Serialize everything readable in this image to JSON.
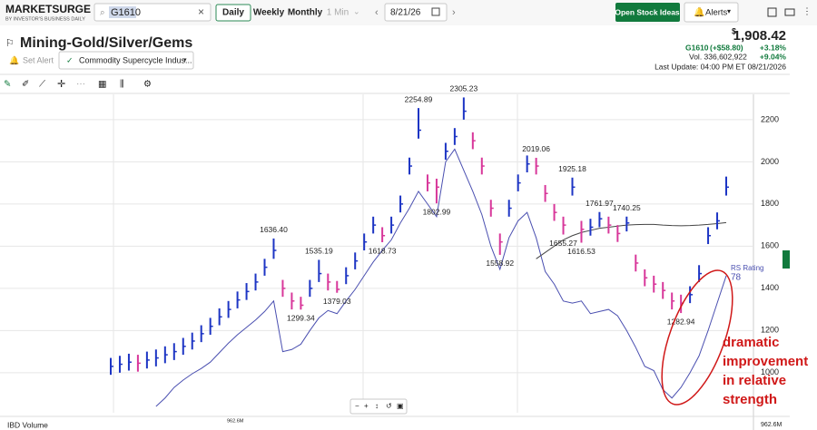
{
  "app": {
    "logo": "MARKETSURGE",
    "logo_sub": "BY INVESTOR'S BUSINESS DAILY",
    "search": "G1610",
    "periods": [
      "Daily",
      "Weekly",
      "Monthly",
      "1 Min"
    ],
    "date": "8/21/26",
    "open_ideas": "Open Stock Ideas",
    "alerts": "Alerts",
    "title": "Mining-Gold/Silver/Gems",
    "set_alert": "Set Alert",
    "list": "Commodity Supercycle Indus...",
    "quote": {
      "currency": "$",
      "price": "1,908.42",
      "symbol": "G1610",
      "change": "(+$58.80)",
      "change_pct": "+3.18%",
      "volume": "Vol. 336,602,922",
      "volume_pct": "+9.04%",
      "last_update": "Last Update: 04:00 PM ET 08/21/2026"
    },
    "volume_label": "IBD Volume",
    "volume_ticks": [
      "962.6M",
      "962.6M"
    ]
  },
  "chart_data": {
    "type": "ohlc",
    "ylim": [
      810,
      2320
    ],
    "yticks": [
      1000,
      1200,
      1400,
      1600,
      1800,
      2000,
      2200
    ],
    "up_color": "#1d35c4",
    "down_color": "#d8379a",
    "closes": [
      1030,
      1040,
      1050,
      1045,
      1060,
      1070,
      1085,
      1100,
      1125,
      1150,
      1185,
      1220,
      1265,
      1300,
      1345,
      1385,
      1430,
      1500,
      1580,
      1400,
      1340,
      1320,
      1400,
      1470,
      1430,
      1395,
      1460,
      1530,
      1620,
      1700,
      1650,
      1700,
      1800,
      1980,
      2150,
      1900,
      1880,
      2050,
      2120,
      2240,
      2100,
      1980,
      1780,
      1620,
      1780,
      1900,
      1990,
      1980,
      1850,
      1760,
      1700,
      1880,
      1680,
      1690,
      1730,
      1700,
      1660,
      1710,
      1520,
      1450,
      1420,
      1390,
      1340,
      1330,
      1370,
      1470,
      1650,
      1720,
      1880
    ],
    "highs": [
      1070,
      1080,
      1090,
      1085,
      1100,
      1110,
      1125,
      1140,
      1165,
      1190,
      1225,
      1260,
      1305,
      1340,
      1385,
      1425,
      1470,
      1540,
      1636.4,
      1440,
      1380,
      1360,
      1440,
      1535.19,
      1470,
      1435,
      1500,
      1570,
      1660,
      1740,
      1690,
      1740,
      1840,
      2020,
      2254.89,
      1940,
      1920,
      2090,
      2160,
      2305.23,
      2140,
      2020,
      1820,
      1660,
      1820,
      1940,
      2030,
      2019.06,
      1890,
      1800,
      1740,
      1925.18,
      1720,
      1730,
      1761.97,
      1740,
      1700,
      1740.25,
      1560,
      1490,
      1460,
      1430,
      1380,
      1370,
      1410,
      1510,
      1690,
      1760,
      1930
    ],
    "lows": [
      990,
      1000,
      1010,
      1005,
      1020,
      1030,
      1045,
      1060,
      1085,
      1110,
      1145,
      1180,
      1225,
      1260,
      1305,
      1345,
      1390,
      1460,
      1540,
      1360,
      1300,
      1299.34,
      1360,
      1430,
      1390,
      1379.03,
      1420,
      1490,
      1580,
      1660,
      1618.73,
      1660,
      1760,
      1940,
      2110,
      1860,
      1802.99,
      2010,
      2080,
      2200,
      2060,
      1940,
      1740,
      1558.92,
      1740,
      1860,
      1950,
      1940,
      1810,
      1720,
      1655.27,
      1840,
      1616.53,
      1650,
      1690,
      1660,
      1620,
      1670,
      1480,
      1410,
      1380,
      1350,
      1300,
      1282.94,
      1330,
      1430,
      1610,
      1680,
      1840
    ],
    "price_labels": [
      {
        "value": 1636.4,
        "label": "1636.40"
      },
      {
        "value": 1299.34,
        "label": "1299.34"
      },
      {
        "value": 1535.19,
        "label": "1535.19"
      },
      {
        "value": 1379.03,
        "label": "1379.03"
      },
      {
        "value": 1618.73,
        "label": "1618.73"
      },
      {
        "value": 2254.89,
        "label": "2254.89"
      },
      {
        "value": 1802.99,
        "label": "1802.99"
      },
      {
        "value": 2305.23,
        "label": "2305.23"
      },
      {
        "value": 1558.92,
        "label": "1558.92"
      },
      {
        "value": 2019.06,
        "label": "2019.06"
      },
      {
        "value": 1655.27,
        "label": "1655.27"
      },
      {
        "value": 1925.18,
        "label": "1925.18"
      },
      {
        "value": 1616.53,
        "label": "1616.53"
      },
      {
        "value": 1761.97,
        "label": "1761.97"
      },
      {
        "value": 1740.25,
        "label": "1740.25"
      },
      {
        "value": 1282.94,
        "label": "1282.94"
      }
    ],
    "rs_line": {
      "name": "RS Rating",
      "rating": "78",
      "color": "#4a4fb0",
      "values": [
        null,
        null,
        null,
        null,
        null,
        840,
        880,
        930,
        965,
        995,
        1020,
        1050,
        1095,
        1140,
        1180,
        1215,
        1250,
        1290,
        1340,
        1100,
        1110,
        1135,
        1200,
        1260,
        1295,
        1280,
        1340,
        1395,
        1460,
        1525,
        1580,
        1630,
        1710,
        1780,
        1860,
        1800,
        1740,
        2000,
        2060,
        1960,
        1860,
        1750,
        1600,
        1490,
        1640,
        1720,
        1760,
        1640,
        1480,
        1420,
        1340,
        1330,
        1340,
        1280,
        1290,
        1300,
        1270,
        1200,
        1120,
        1030,
        1010,
        920,
        880,
        930,
        1000,
        1080,
        1200,
        1330,
        1460
      ]
    },
    "moving_average": {
      "color": "#444444",
      "values": [
        null,
        null,
        null,
        null,
        null,
        null,
        null,
        null,
        null,
        null,
        null,
        null,
        null,
        null,
        null,
        null,
        null,
        null,
        null,
        null,
        null,
        null,
        null,
        null,
        null,
        null,
        null,
        null,
        null,
        null,
        null,
        null,
        null,
        null,
        null,
        null,
        null,
        null,
        null,
        null,
        null,
        null,
        null,
        null,
        null,
        null,
        null,
        1540,
        1570,
        1600,
        1630,
        1650,
        1665,
        1675,
        1685,
        1690,
        1695,
        1700,
        1702,
        1703,
        1703,
        1700,
        1698,
        1697,
        1698,
        1700,
        1703,
        1707,
        1712
      ]
    },
    "annotation": {
      "lines": [
        "dramatic",
        "improvement",
        "in relative",
        "strength"
      ],
      "color": "#d01818"
    }
  }
}
